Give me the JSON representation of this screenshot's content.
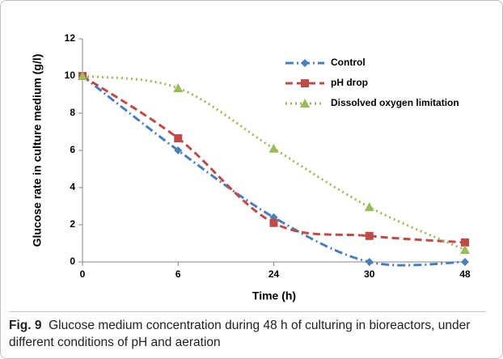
{
  "chart_data": {
    "type": "line",
    "xlabel": "Time (h)",
    "ylabel": "Glucose rate in culture medium (g/l)",
    "categories": [
      "0",
      "6",
      "24",
      "30",
      "48"
    ],
    "series": [
      {
        "name": "Control",
        "color": "#4a7ebb",
        "dash": "dashdot",
        "marker": "diamond",
        "values": [
          10,
          6,
          2.4,
          0,
          0
        ]
      },
      {
        "name": "pH drop",
        "color": "#be4b48",
        "dash": "dash",
        "marker": "square",
        "values": [
          10,
          6.65,
          2.1,
          1.4,
          1.05
        ]
      },
      {
        "name": "Dissolved oxygen limitation",
        "color": "#9bbb59",
        "dash": "dot",
        "marker": "triangle",
        "values": [
          10,
          9.35,
          6.1,
          2.95,
          0.65
        ]
      }
    ],
    "ylim": [
      0,
      12
    ],
    "yticks": [
      0,
      2,
      4,
      6,
      8,
      10,
      12
    ],
    "grid": false,
    "smooth": true,
    "legend": "top-right"
  },
  "caption": {
    "label": "Fig. 9",
    "text": "Glucose medium concentration during 48 h of culturing in bioreactors, under different conditions of pH and aeration"
  }
}
